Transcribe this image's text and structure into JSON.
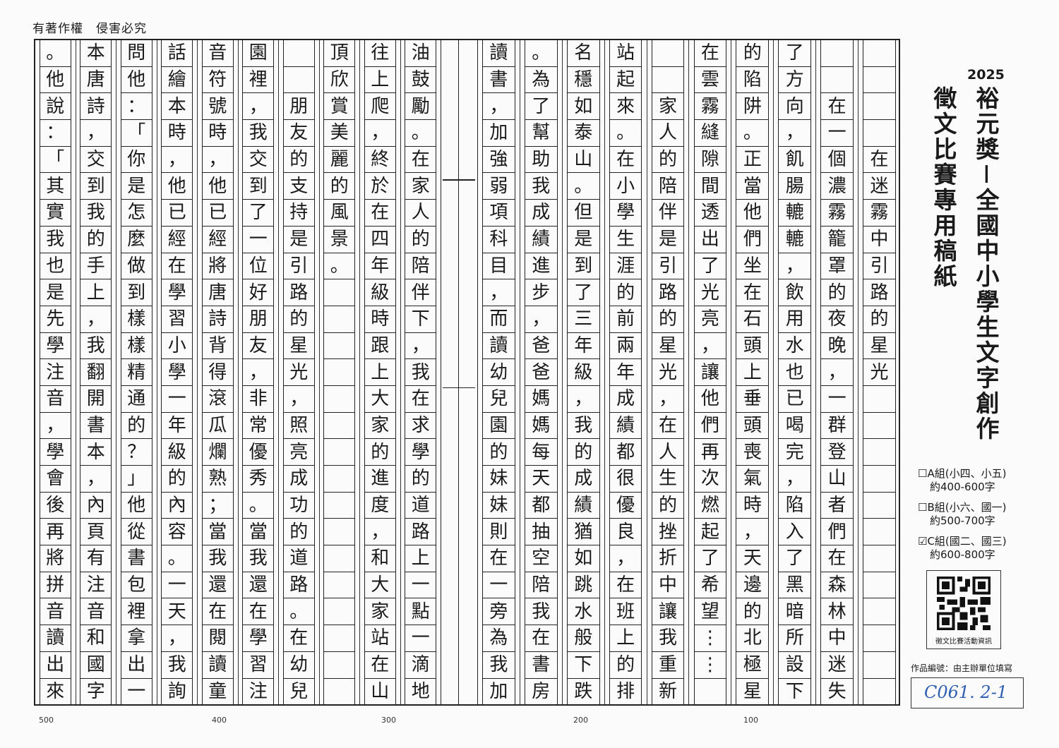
{
  "header": {
    "copyright": "有著作權　侵害必究"
  },
  "manuscript": {
    "columns": [
      "　　　　在迷霧中引路的星光",
      "　　在一個濃霧籠罩的夜晚，一群登山者們在森林中迷失",
      "了方向，飢腸轆轆，飲用水也已喝完，陷入了黑暗所設下",
      "的陷阱。正當他們坐在石頭上垂頭喪氣時，天邊的北極星",
      "在雲霧縫隙間透出了光亮，讓他們再次燃起了希望⋮⋮",
      "　　家人的陪伴是引路的星光，在人生的挫折中讓我重新",
      "站起來。在小學生涯的前兩年成績都很優良，在班上的排",
      "名穩如泰山。但是到了三年級，我的成績猶如跳水般下跌",
      "。為了幫助我成績進步，爸爸媽媽每天都抽空陪我在書房",
      "讀書，加強弱項科目，而讀幼兒園的妹妹則在一旁為我加",
      "油鼓勵。在家人的陪伴下，我在求學的道路上一點一滴地",
      "往上爬，終於在四年級時跟上大家的進度，和大家站在山",
      "頂欣賞美麗的風景。",
      "　　朋友的支持是引路的星光，照亮成功的道路。在幼兒",
      "園裡，我交到了一位好朋友，非常優秀。當我還在學習注",
      "音符號時，他已經將唐詩背得滾瓜爛熟；當我還在閱讀童",
      "話繪本時，他已經在學習小學一年級的內容。一天，我詢",
      "問他：「你是怎麼做到樣樣精通的？」他從書包裡拿出一",
      "本唐詩，交到我的手上，我翻開書本，內頁有注音和國字",
      "。他說：「其實我也是先學注音，學會後再將拼音讀出來"
    ],
    "counters": [
      "500",
      "400",
      "300",
      "200",
      "100"
    ]
  },
  "sidebar": {
    "year": "2025",
    "title_line1": "裕元獎－全國中小學生文字創作",
    "title_line2": "徵文比賽專用稿紙",
    "options": [
      {
        "label": "A組(小四、小五)",
        "range": "約400-600字",
        "checked": false
      },
      {
        "label": "B組(小六、國一)",
        "range": "約500-700字",
        "checked": false
      },
      {
        "label": "C組(國二、國三)",
        "range": "約600-800字",
        "checked": true
      }
    ],
    "qr_caption": "徵文比賽活動資訊",
    "id_label": "作品編號：由主辦單位填寫",
    "id_value": "C061. 2-1"
  }
}
